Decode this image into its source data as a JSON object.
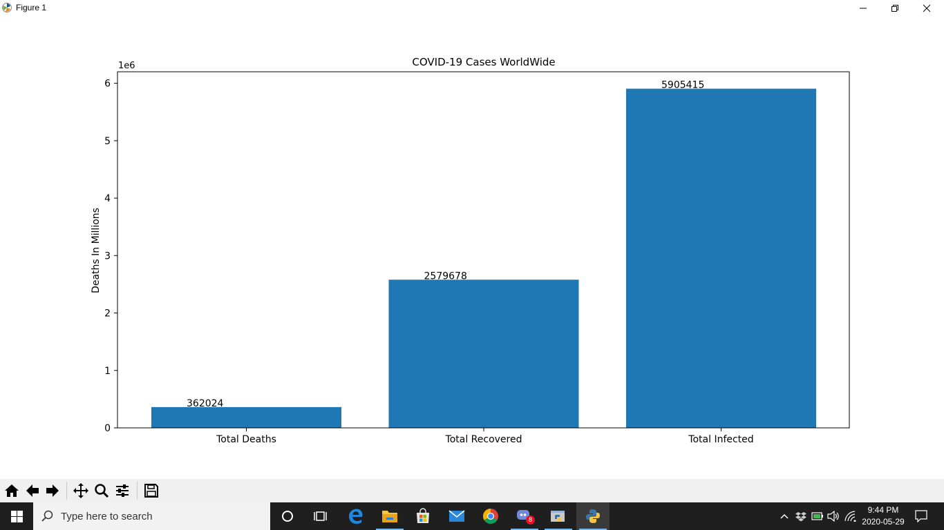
{
  "window": {
    "title": "Figure 1",
    "controls": [
      "minimize",
      "restore",
      "close"
    ]
  },
  "chart_data": {
    "type": "bar",
    "title": "COVID-19 Cases WorldWide",
    "ylabel": "Deaths In Millions",
    "xlabel": "",
    "offset_text": "1e6",
    "categories": [
      "Total Deaths",
      "Total Recovered",
      "Total Infected"
    ],
    "values": [
      362024,
      2579678,
      5905415
    ],
    "data_labels": [
      "362024",
      "2579678",
      "5905415"
    ],
    "yticks": [
      0,
      1000000,
      2000000,
      3000000,
      4000000,
      5000000,
      6000000
    ],
    "ytick_labels": [
      "0",
      "1",
      "2",
      "3",
      "4",
      "5",
      "6"
    ],
    "ylim": [
      0,
      6200000
    ],
    "bar_color": "#1f77b4",
    "grid": false
  },
  "toolbar": {
    "buttons": [
      "home-icon",
      "back-icon",
      "forward-icon",
      "pan-icon",
      "zoom-icon",
      "configure-subplots-icon",
      "save-icon"
    ]
  },
  "taskbar": {
    "search_placeholder": "Type here to search",
    "mail_badge": "8",
    "time": "9:44 PM",
    "date": "2020-05-29"
  }
}
